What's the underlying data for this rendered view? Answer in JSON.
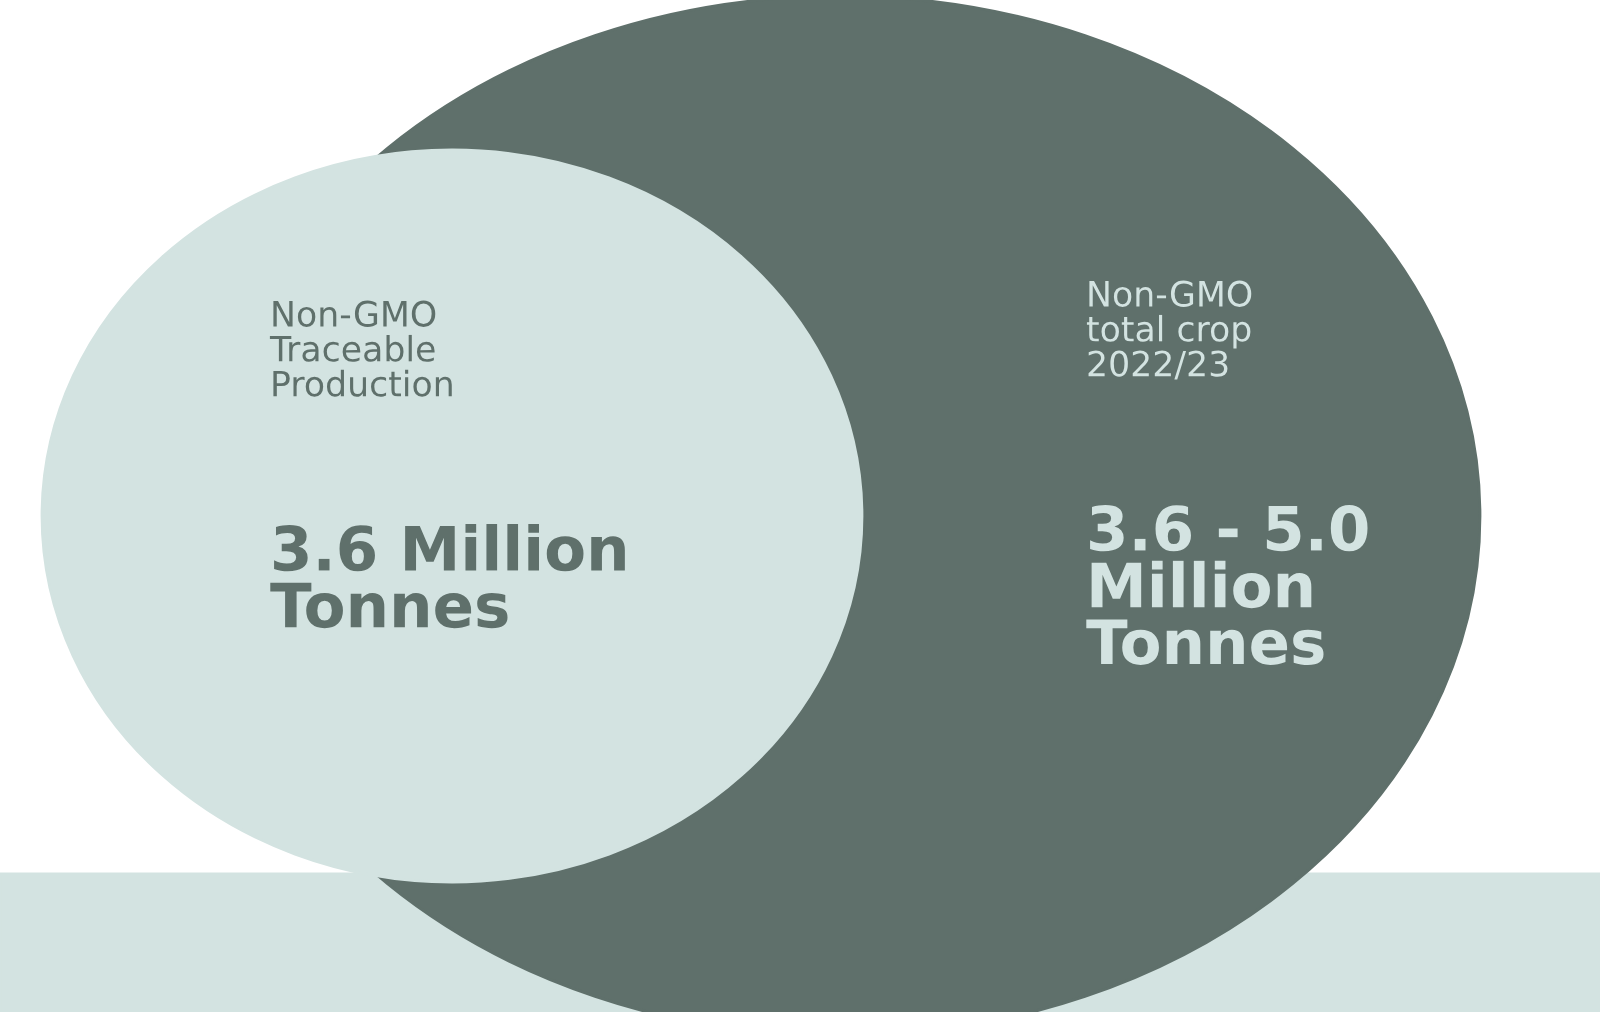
{
  "chart_data": {
    "type": "other",
    "categories": [
      "Non-GMO\nTraceable\nProduction",
      "Non-GMO\ntotal crop\n2022/23"
    ],
    "values": [
      3.6,
      3.6
    ],
    "value_labels": [
      "3.6 Million\nTonnes",
      "3.6 - 5.0\nMillion\nTonnes"
    ],
    "colors": [
      "#d3e3e1",
      "#5f706b"
    ]
  }
}
